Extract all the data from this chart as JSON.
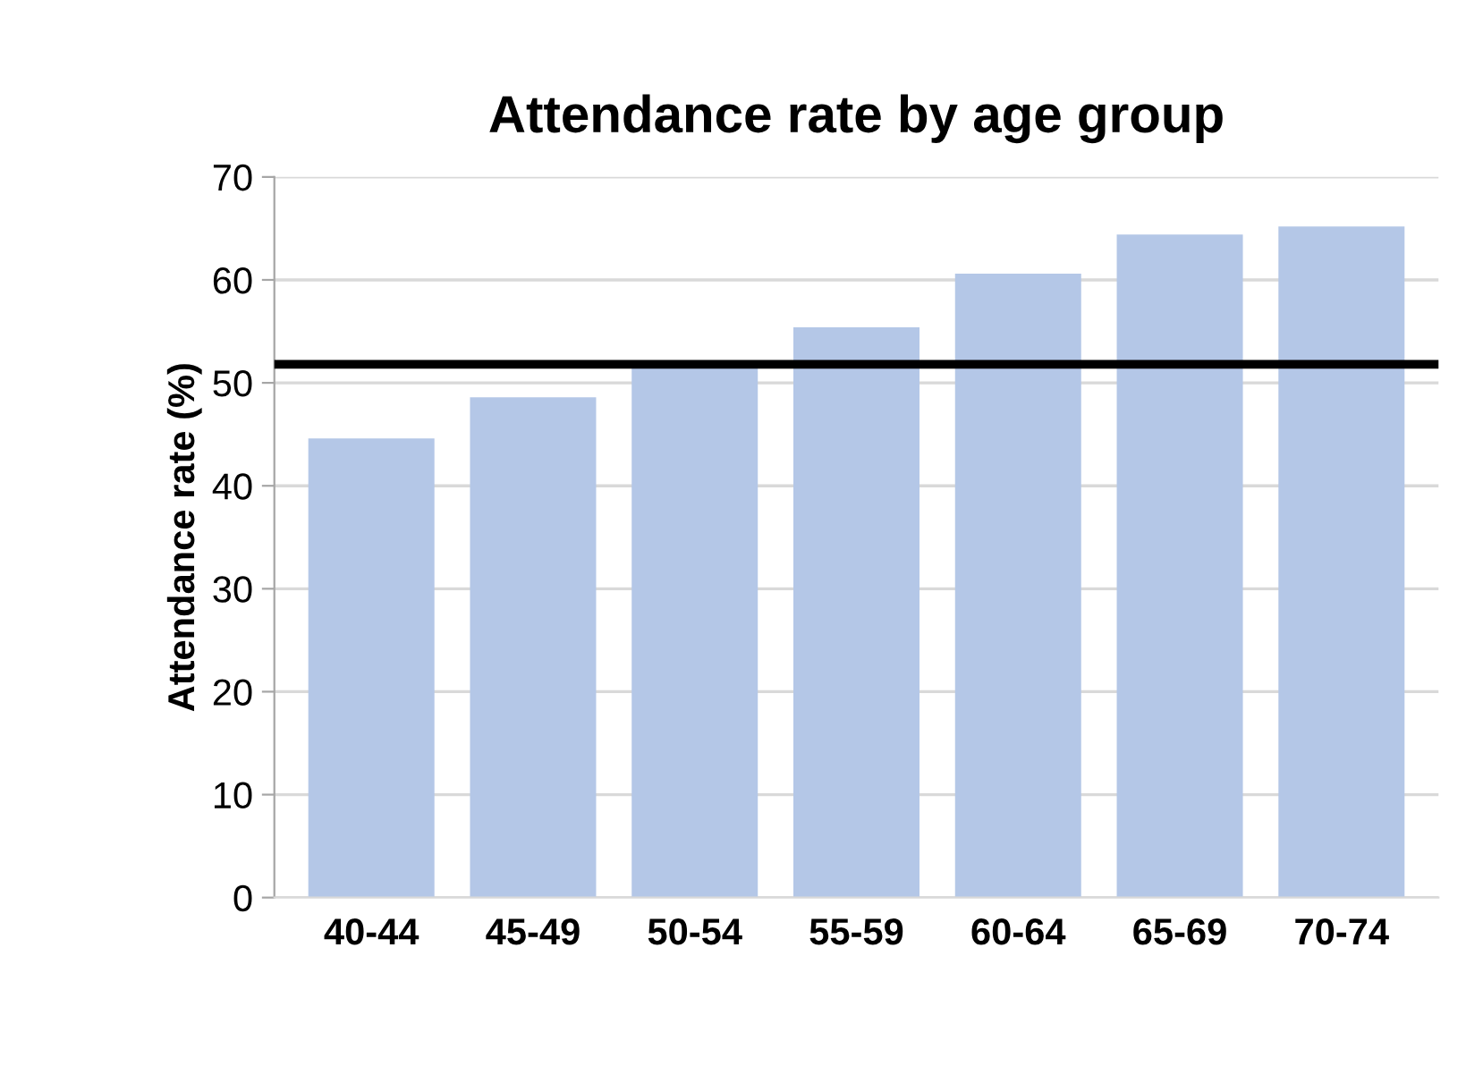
{
  "chart_data": {
    "type": "bar",
    "title": "Attendance rate by age group",
    "ylabel": "Attendance rate (%)",
    "categories": [
      "40-44",
      "45-49",
      "50-54",
      "55-59",
      "60-64",
      "65-69",
      "70-74"
    ],
    "values": [
      44.6,
      48.6,
      51.6,
      55.4,
      60.6,
      64.4,
      65.2
    ],
    "color": "#b4c7e7",
    "ylim": [
      0,
      70
    ],
    "yticks": [
      0,
      10,
      20,
      30,
      40,
      50,
      60,
      70
    ],
    "grid": "y",
    "ref_lines": [
      {
        "axis": "y",
        "value": 51.8,
        "color": "#000000",
        "line_style": "solid"
      }
    ]
  }
}
